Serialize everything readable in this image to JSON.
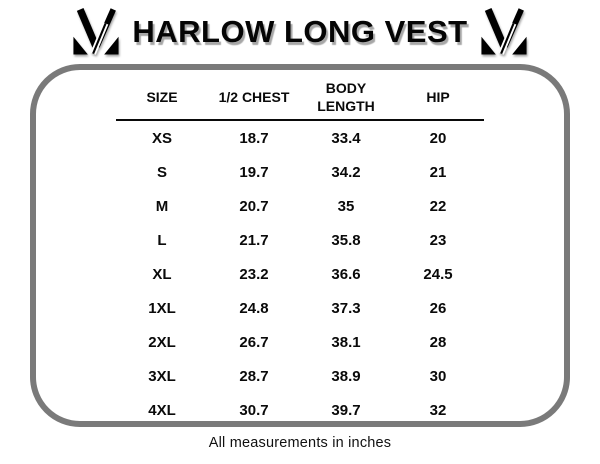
{
  "header": {
    "title": "HARLOW LONG VEST",
    "logo": "stylized-m-brand-mark"
  },
  "chart_data": {
    "type": "table",
    "title": "HARLOW LONG VEST",
    "columns": [
      "SIZE",
      "1/2 CHEST",
      "BODY LENGTH",
      "HIP"
    ],
    "rows": [
      [
        "XS",
        "18.7",
        "33.4",
        "20"
      ],
      [
        "S",
        "19.7",
        "34.2",
        "21"
      ],
      [
        "M",
        "20.7",
        "35",
        "22"
      ],
      [
        "L",
        "21.7",
        "35.8",
        "23"
      ],
      [
        "XL",
        "23.2",
        "36.6",
        "24.5"
      ],
      [
        "1XL",
        "24.8",
        "37.3",
        "26"
      ],
      [
        "2XL",
        "26.7",
        "38.1",
        "28"
      ],
      [
        "3XL",
        "28.7",
        "38.9",
        "30"
      ],
      [
        "4XL",
        "30.7",
        "39.7",
        "32"
      ]
    ],
    "caption": "All measurements in inches"
  },
  "colors": {
    "panel_border": "#7a7a7a",
    "text": "#0a0a0a",
    "header_underline": "#0a0a0a"
  }
}
